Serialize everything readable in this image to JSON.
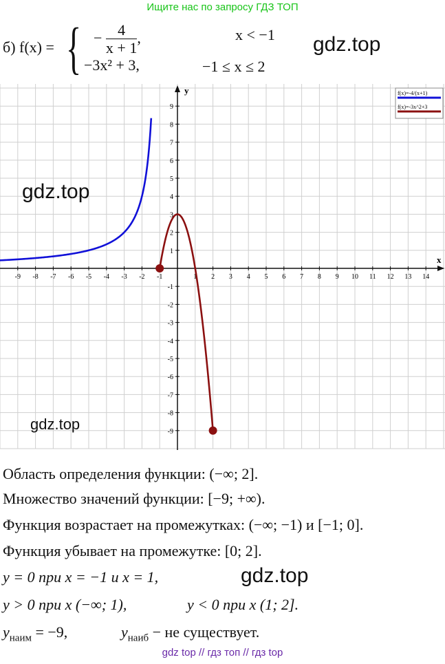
{
  "banner": "Ищите нас по запросу ГДЗ ТОП",
  "watermarks": [
    "gdz.top",
    "gdz.top",
    "gdz.top",
    "gdz.top"
  ],
  "footer": "gdz top  //  гдз топ  //  гдз top",
  "formula": {
    "label": "б) f(x) =",
    "case1_minus": "−",
    "case1_num": "4",
    "case1_den": "x + 1",
    "case1_comma": ",",
    "case1_cond": "x < −1",
    "case2_expr": "−3x² + 3,",
    "case2_cond": "−1 ≤ x ≤ 2"
  },
  "chart_data": {
    "type": "line",
    "xlabel": "x",
    "ylabel": "y",
    "xlim": [
      -10,
      15
    ],
    "ylim": [
      -10,
      10
    ],
    "x_ticks": [
      "-9",
      "-8",
      "-7",
      "-6",
      "-5",
      "-4",
      "-3",
      "-2",
      "-1",
      "1",
      "2",
      "3",
      "4",
      "5",
      "6",
      "7",
      "8",
      "9",
      "10",
      "11",
      "12",
      "13",
      "14"
    ],
    "y_ticks": [
      "9",
      "8",
      "7",
      "6",
      "5",
      "4",
      "3",
      "2",
      "1",
      "-1",
      "-2",
      "-3",
      "-4",
      "-5",
      "-6",
      "-7",
      "-8",
      "-9"
    ],
    "legend": [
      "f(x)=-4/(x+1)",
      "f(x)=-3x^2+3"
    ],
    "legend_placement": "top-right",
    "series": [
      {
        "name": "f(x)=-4/(x+1)",
        "color": "#1010d8",
        "x": [
          -10,
          -9,
          -8,
          -7,
          -6,
          -5,
          -4,
          -3,
          -2.5,
          -2,
          -1.8,
          -1.6,
          -1.5
        ],
        "y": [
          0.44,
          0.5,
          0.57,
          0.67,
          0.8,
          1,
          1.33,
          2,
          2.67,
          4,
          5,
          6.67,
          8
        ]
      },
      {
        "name": "f(x)=-3x^2+3",
        "color": "#8b1010",
        "x": [
          -1,
          -0.75,
          -0.5,
          -0.25,
          0,
          0.25,
          0.5,
          0.75,
          1,
          1.25,
          1.5,
          1.75,
          2
        ],
        "y": [
          0,
          1.31,
          2.25,
          2.81,
          3,
          2.81,
          2.25,
          1.31,
          0,
          -1.69,
          -3.75,
          -6.19,
          -9
        ]
      }
    ],
    "points": [
      {
        "x": -1,
        "y": 0
      },
      {
        "x": 2,
        "y": -9
      }
    ],
    "grid": true
  },
  "lines": {
    "domain": "Область определения функции: (−∞; 2].",
    "range": "Множество значений функции: [−9; +∞).",
    "increasing": "Функция возрастает на промежутках: (−∞; −1) и [−1; 0].",
    "decreasing": "Функция убывает на промежутке: [0; 2].",
    "zeros": "y = 0 при x = −1 и x = 1,",
    "pos": "y > 0 при x (−∞; 1),",
    "neg": "y < 0 при x (1; 2].",
    "ymin_y": "y",
    "ymin_sub": "наим",
    "ymin_val": " = −9,",
    "ymax_y": "y",
    "ymax_sub": "наиб",
    "ymax_val": " − не существует."
  }
}
